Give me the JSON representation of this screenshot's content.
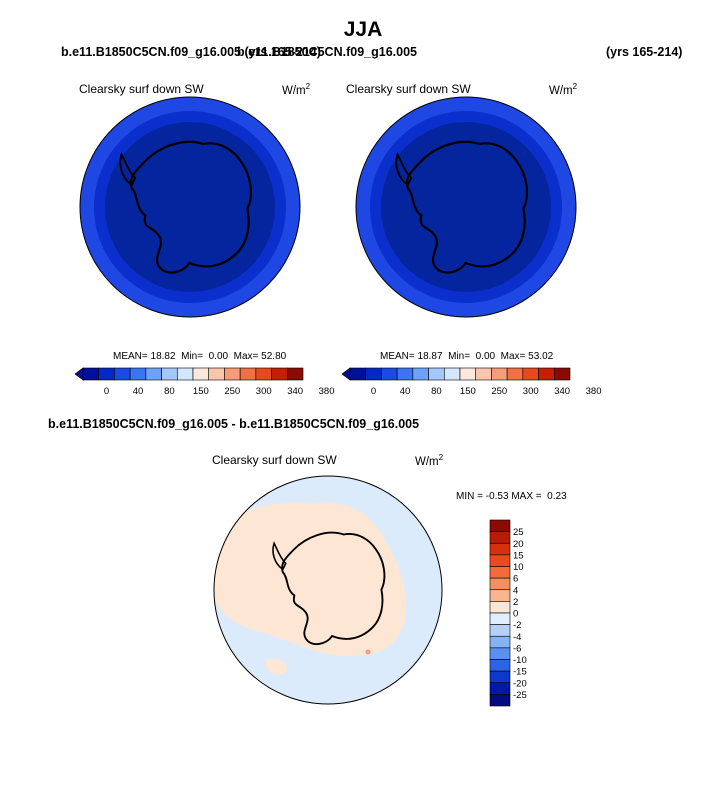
{
  "figure": {
    "season": "JJA",
    "case_left": "b.e11.B1850C5CN.f09_g16.005 (yrs 165-214)",
    "case_right": "b.e11.B1850C5CN.f09_g16.005",
    "right_years": "(yrs 165-214)",
    "diff_title": "b.e11.B1850C5CN.f09_g16.005 - b.e11.B1850C5CN.f09_g16.005"
  },
  "chart_data": [
    {
      "type": "heatmap",
      "title": "Clearsky surf down SW",
      "units": "W/m",
      "units_exp": "2",
      "stats": {
        "mean_label": "MEAN=",
        "mean": "18.82",
        "min_label": "Min=",
        "min": "0.00",
        "max_label": "Max=",
        "max": "52.80"
      },
      "colorbar": {
        "labels": [
          "0",
          "40",
          "80",
          "150",
          "250",
          "300",
          "340",
          "380"
        ],
        "colors": [
          "#00109a",
          "#0428c8",
          "#1b4ae6",
          "#3b74f4",
          "#6ea2f8",
          "#a4c8fa",
          "#d4e6fc",
          "#fbe8dc",
          "#f9c6ac",
          "#f79c78",
          "#f27046",
          "#e8481e",
          "#c81e06",
          "#8c0a04"
        ]
      },
      "field_colors": {
        "outer_ring": "#1e47e4",
        "middle_ring": "#0a2fcd",
        "inner_disc": "#05259f"
      }
    },
    {
      "type": "heatmap",
      "title": "Clearsky surf down SW",
      "units": "W/m",
      "units_exp": "2",
      "stats": {
        "mean_label": "MEAN=",
        "mean": "18.87",
        "min_label": "Min=",
        "min": "0.00",
        "max_label": "Max=",
        "max": "53.02"
      },
      "colorbar": {
        "labels": [
          "0",
          "40",
          "80",
          "150",
          "250",
          "300",
          "340",
          "380"
        ],
        "colors": [
          "#00109a",
          "#0428c8",
          "#1b4ae6",
          "#3b74f4",
          "#6ea2f8",
          "#a4c8fa",
          "#d4e6fc",
          "#fbe8dc",
          "#f9c6ac",
          "#f79c78",
          "#f27046",
          "#e8481e",
          "#c81e06",
          "#8c0a04"
        ]
      },
      "field_colors": {
        "outer_ring": "#1e47e4",
        "middle_ring": "#0a2fcd",
        "inner_disc": "#05259f"
      }
    },
    {
      "type": "heatmap",
      "title": "Clearsky surf down SW",
      "units": "W/m",
      "units_exp": "2",
      "stats": {
        "min_label": "MIN =",
        "min": "-0.53",
        "max_label": "MAX =",
        "max": "0.23"
      },
      "colorbar": {
        "labels": [
          "25",
          "20",
          "15",
          "10",
          "6",
          "4",
          "2",
          "0",
          "-2",
          "-4",
          "-6",
          "-10",
          "-15",
          "-20",
          "-25"
        ],
        "colors": [
          "#8c0a04",
          "#b81c06",
          "#d8300c",
          "#ec4a1e",
          "#f46a3a",
          "#f78e62",
          "#f9b492",
          "#fde6d4",
          "#e0eefc",
          "#b4d0fa",
          "#86b2f6",
          "#5a90f0",
          "#2c64e8",
          "#0e38cc",
          "#0418a4",
          "#000c80"
        ]
      },
      "field_colors": {
        "background": "#dcebfc",
        "land_anomaly": "#fde6d4",
        "positive_spot": "#f4a070"
      }
    }
  ]
}
